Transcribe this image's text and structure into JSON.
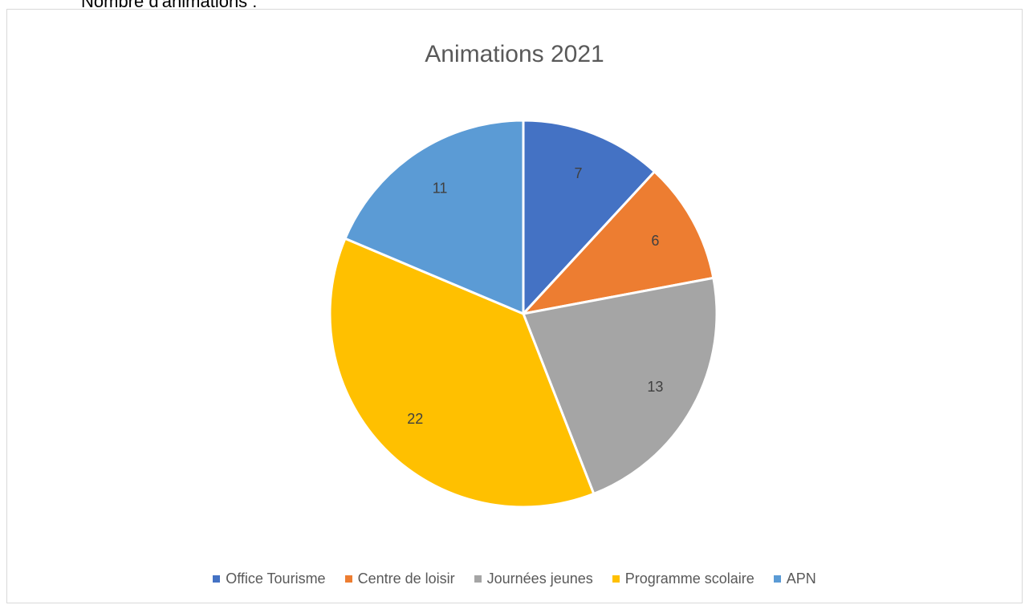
{
  "document": {
    "caption": "Nombre d'animations :"
  },
  "chart_data": {
    "type": "pie",
    "title": "Animations 2021",
    "categories": [
      "Office Tourisme",
      "Centre de loisir",
      "Journées jeunes",
      "Programme scolaire",
      "APN"
    ],
    "values": [
      7,
      6,
      13,
      22,
      11
    ],
    "colors": [
      "#4472C4",
      "#ED7D31",
      "#A5A5A5",
      "#FFC000",
      "#5B9BD5"
    ],
    "data_labels": [
      "7",
      "6",
      "13",
      "22",
      "11"
    ],
    "start_angle": "12 o'clock",
    "direction": "clockwise",
    "legend_position": "bottom"
  }
}
